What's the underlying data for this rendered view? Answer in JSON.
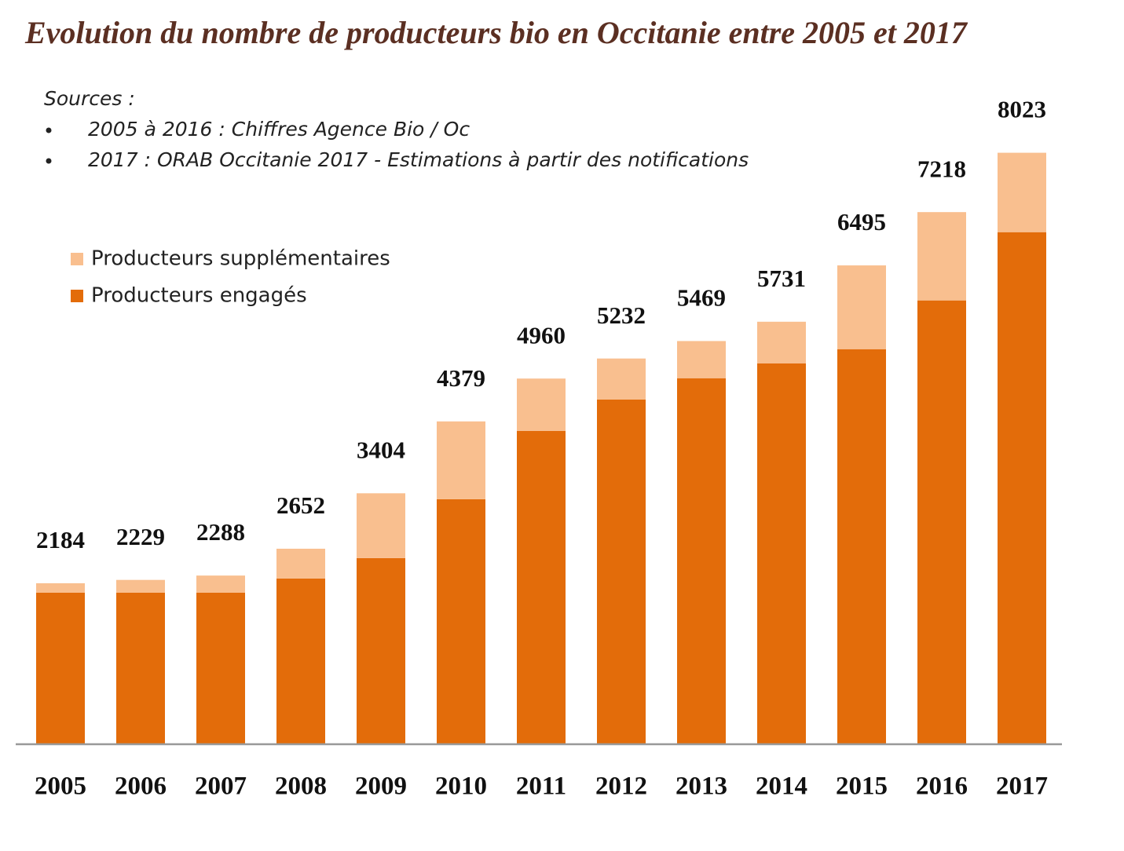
{
  "chart_data": {
    "type": "stacked_bar",
    "title": "Evolution du nombre de producteurs bio en Occitanie entre 2005 et 2017",
    "notes": [
      "Sources :",
      "2005 à 2016 : Chiffres Agence Bio / Oc",
      "2017 : ORAB Occitanie  2017 - Estimations à partir des notifications"
    ],
    "categories": [
      "2005",
      "2006",
      "2007",
      "2008",
      "2009",
      "2010",
      "2011",
      "2012",
      "2013",
      "2014",
      "2015",
      "2016",
      "2017"
    ],
    "series": [
      {
        "name": "Producteurs engagés",
        "color": "#e36c0a",
        "values": [
          2056,
          2056,
          2056,
          2248,
          2525,
          3324,
          4251,
          4677,
          4965,
          5167,
          5359,
          6020,
          6946
        ]
      },
      {
        "name": "Producteurs supplémentaires",
        "color": "#f9bf8f",
        "values": [
          128,
          173,
          232,
          404,
          879,
          1055,
          709,
          555,
          504,
          564,
          1136,
          1198,
          1077
        ]
      }
    ],
    "totals": [
      2184,
      2229,
      2288,
      2652,
      3404,
      4379,
      4960,
      5232,
      5469,
      5731,
      6495,
      7218,
      8023
    ],
    "ylim": [
      0,
      8700
    ]
  }
}
